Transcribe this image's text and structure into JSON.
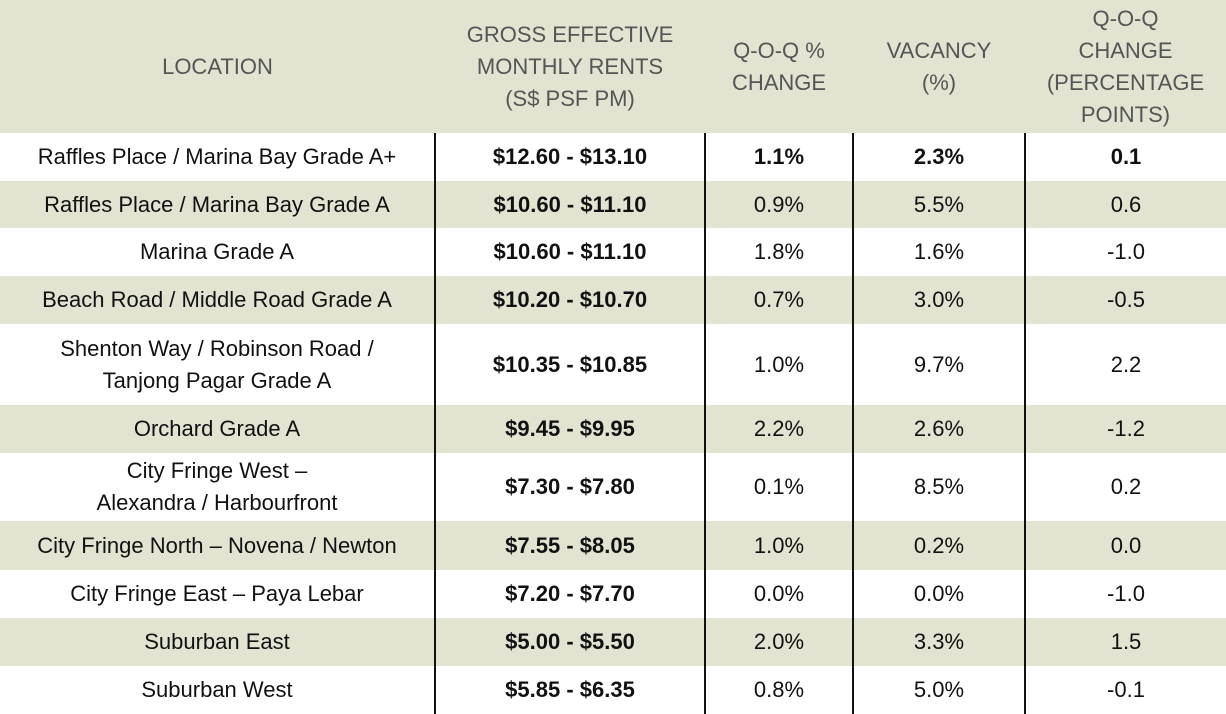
{
  "table": {
    "header": [
      "LOCATION",
      "GROSS EFFECTIVE\nMONTHLY RENTS\n(S$ PSF PM)",
      "Q-O-Q %\nCHANGE",
      "VACANCY\n(%)",
      "Q-O-Q\nCHANGE\n(PERCENTAGE\nPOINTS)"
    ],
    "rows": [
      [
        "Raffles Place / Marina Bay Grade A+",
        "$12.60 - $13.10",
        "1.1%",
        "2.3%",
        "0.1"
      ],
      [
        "Raffles Place / Marina Bay Grade A",
        "$10.60 - $11.10",
        "0.9%",
        "5.5%",
        "0.6"
      ],
      [
        "Marina Grade A",
        "$10.60 - $11.10",
        "1.8%",
        "1.6%",
        "-1.0"
      ],
      [
        "Beach Road / Middle Road Grade A",
        "$10.20 - $10.70",
        "0.7%",
        "3.0%",
        "-0.5"
      ],
      [
        "Shenton Way / Robinson Road /\nTanjong Pagar Grade A",
        "$10.35 - $10.85",
        "1.0%",
        "9.7%",
        "2.2"
      ],
      [
        "Orchard Grade A",
        "$9.45 - $9.95",
        "2.2%",
        "2.6%",
        "-1.2"
      ],
      [
        "City Fringe West –\nAlexandra / Harbourfront",
        "$7.30 - $7.80",
        "0.1%",
        "8.5%",
        "0.2"
      ],
      [
        "City Fringe North – Novena / Newton",
        "$7.55 - $8.05",
        "1.0%",
        "0.2%",
        "0.0"
      ],
      [
        "City Fringe East – Paya Lebar",
        "$7.20 - $7.70",
        "0.0%",
        "0.0%",
        "-1.0"
      ],
      [
        "Suburban East",
        "$5.00 - $5.50",
        "2.0%",
        "3.3%",
        "1.5"
      ],
      [
        "Suburban West",
        "$5.85 - $6.35",
        "0.8%",
        "5.0%",
        "-0.1"
      ]
    ]
  }
}
